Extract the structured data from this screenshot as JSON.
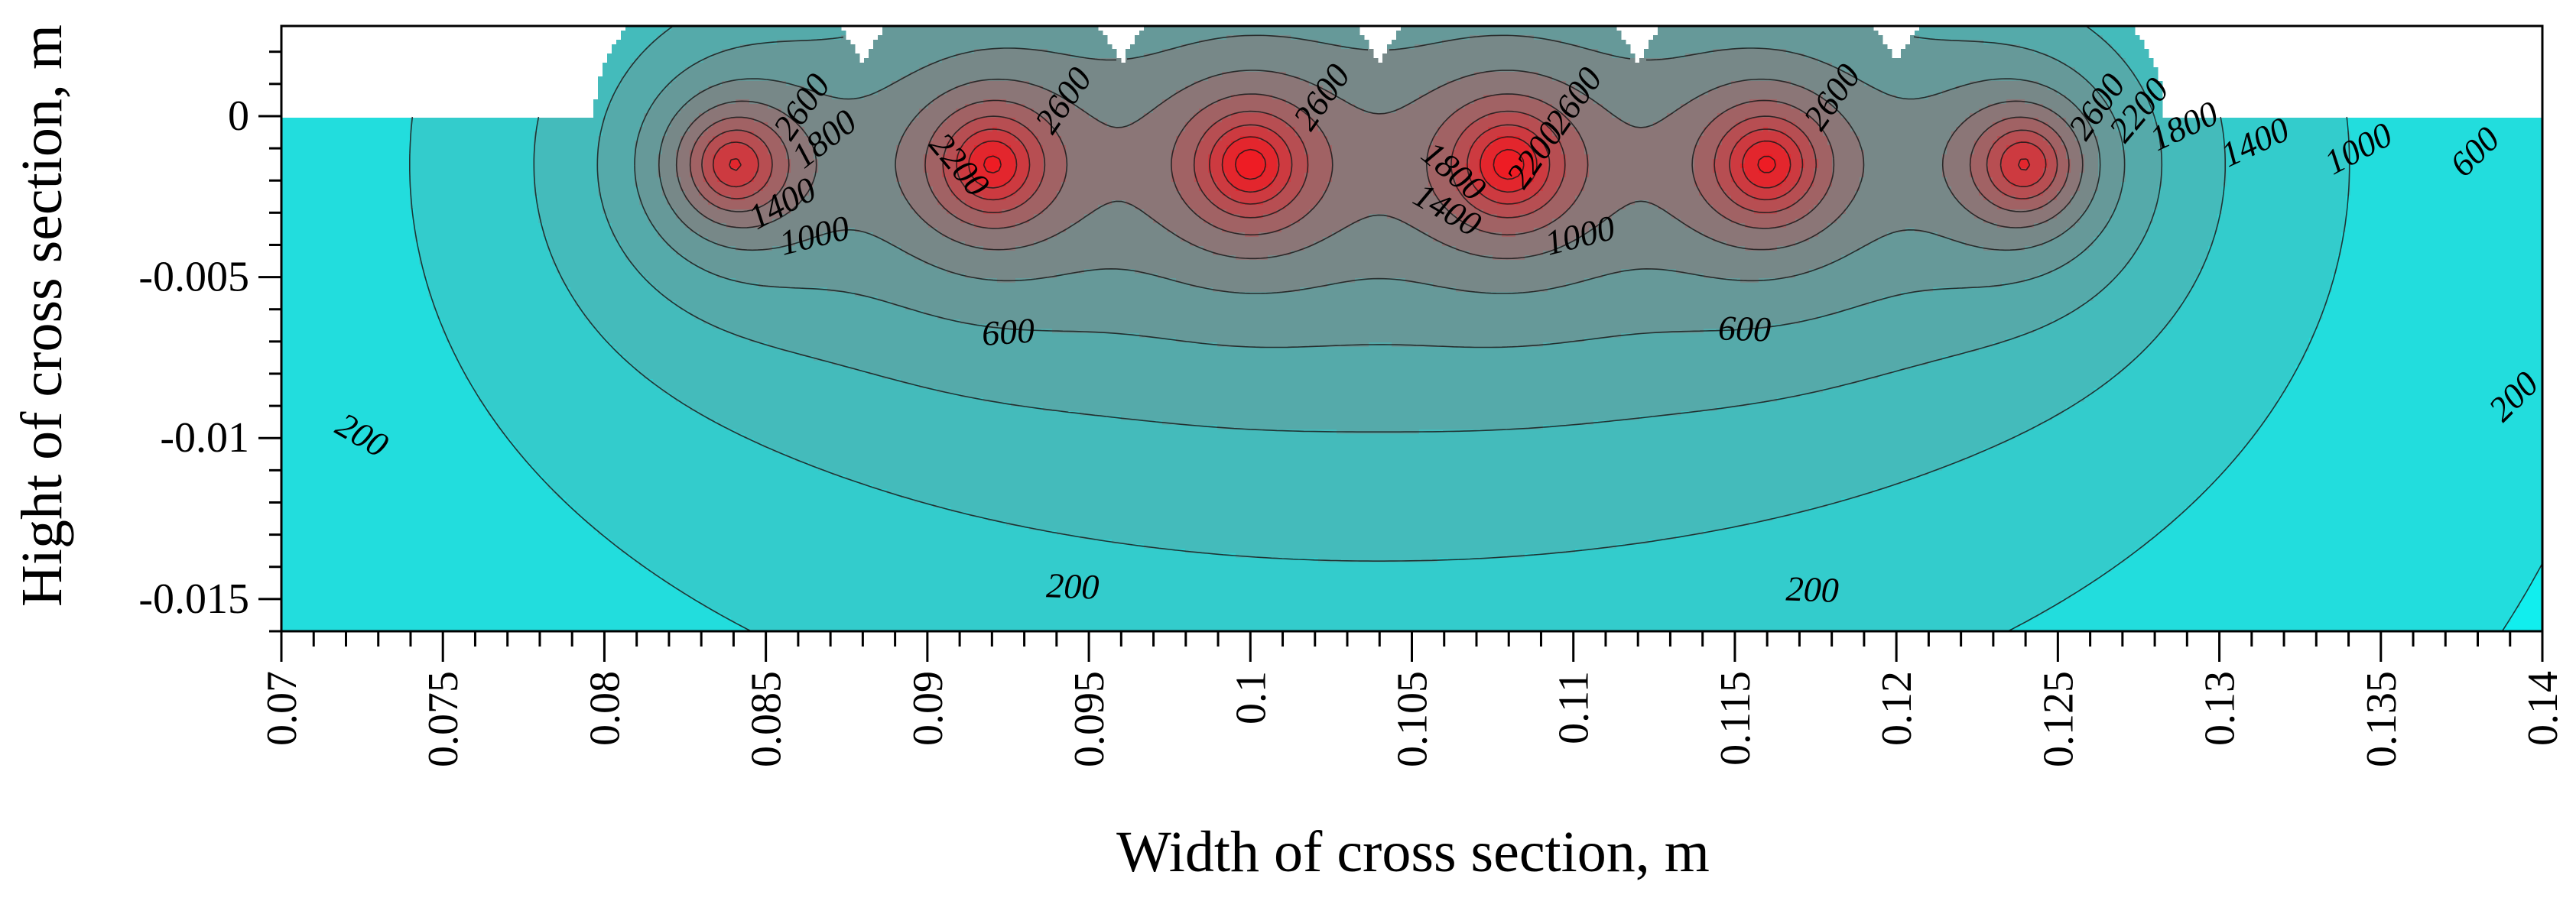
{
  "chart_data": {
    "type": "heatmap",
    "subtype": "filled-contour",
    "xlabel": "Width of cross section, m",
    "ylabel": "Hight of cross section, m",
    "xlim": [
      0.07,
      0.14
    ],
    "ylim": [
      -0.016,
      0.0028
    ],
    "surface_y": 0,
    "xticks": [
      0.07,
      0.075,
      0.08,
      0.085,
      0.09,
      0.095,
      0.1,
      0.105,
      0.11,
      0.115,
      0.12,
      0.125,
      0.13,
      0.135,
      0.14
    ],
    "xtick_labels": [
      "0.07",
      "0.075",
      "0.08",
      "0.085",
      "0.09",
      "0.095",
      "0.1",
      "0.105",
      "0.11",
      "0.115",
      "0.12",
      "0.125",
      "0.13",
      "0.135",
      "0.14"
    ],
    "yticks": [
      0,
      -0.005,
      -0.01,
      -0.015
    ],
    "ytick_labels": [
      "0",
      "-0.005",
      "-0.01",
      "-0.015"
    ],
    "bead_centers": [
      0.084,
      0.092,
      0.1,
      0.108,
      0.116,
      0.124
    ],
    "bead_radius": 0.0043,
    "contour_levels": [
      200,
      400,
      600,
      800,
      1000,
      1200,
      1400,
      1600,
      1800,
      2000,
      2200,
      2400,
      2600
    ],
    "colors": {
      "cold": "#00ffff",
      "warm": "#808080",
      "hot": "#ee1c24",
      "line": "#1a1a1a"
    },
    "contour_labels": [
      {
        "text": "2600",
        "x": 0.0861,
        "y": 0.0003,
        "angle": -55
      },
      {
        "text": "2600",
        "x": 0.0942,
        "y": 0.0005,
        "angle": -55
      },
      {
        "text": "2600",
        "x": 0.1022,
        "y": 0.0006,
        "angle": -55
      },
      {
        "text": "2600",
        "x": 0.11,
        "y": 0.0005,
        "angle": -55
      },
      {
        "text": "2600",
        "x": 0.118,
        "y": 0.0006,
        "angle": -55
      },
      {
        "text": "2600",
        "x": 0.1262,
        "y": 0.0003,
        "angle": -55
      },
      {
        "text": "2200",
        "x": 0.1275,
        "y": 0.0002,
        "angle": -50
      },
      {
        "text": "2200",
        "x": 0.091,
        "y": -0.0015,
        "angle": 50
      },
      {
        "text": "2200",
        "x": 0.1088,
        "y": -0.0012,
        "angle": -55
      },
      {
        "text": "1800",
        "x": 0.0868,
        "y": -0.0007,
        "angle": -38
      },
      {
        "text": "1800",
        "x": 0.1063,
        "y": -0.0017,
        "angle": 40
      },
      {
        "text": "1800",
        "x": 0.1289,
        "y": -0.0003,
        "angle": -25
      },
      {
        "text": "1400",
        "x": 0.0855,
        "y": -0.0027,
        "angle": -28
      },
      {
        "text": "1400",
        "x": 0.1061,
        "y": -0.0029,
        "angle": 30
      },
      {
        "text": "1400",
        "x": 0.1311,
        "y": -0.0008,
        "angle": -25
      },
      {
        "text": "1000",
        "x": 0.0865,
        "y": -0.0037,
        "angle": -14
      },
      {
        "text": "1000",
        "x": 0.1102,
        "y": -0.0037,
        "angle": -14
      },
      {
        "text": "1000",
        "x": 0.1343,
        "y": -0.001,
        "angle": -28
      },
      {
        "text": "600",
        "x": 0.0925,
        "y": -0.0067,
        "angle": -4
      },
      {
        "text": "600",
        "x": 0.1153,
        "y": -0.0066,
        "angle": 2
      },
      {
        "text": "600",
        "x": 0.1379,
        "y": -0.0011,
        "angle": -45
      },
      {
        "text": "200",
        "x": 0.0725,
        "y": -0.0099,
        "angle": 30
      },
      {
        "text": "200",
        "x": 0.0945,
        "y": -0.0146,
        "angle": 2
      },
      {
        "text": "200",
        "x": 0.1174,
        "y": -0.0147,
        "angle": 2
      },
      {
        "text": "200",
        "x": 0.1391,
        "y": -0.0087,
        "angle": -45
      }
    ]
  }
}
